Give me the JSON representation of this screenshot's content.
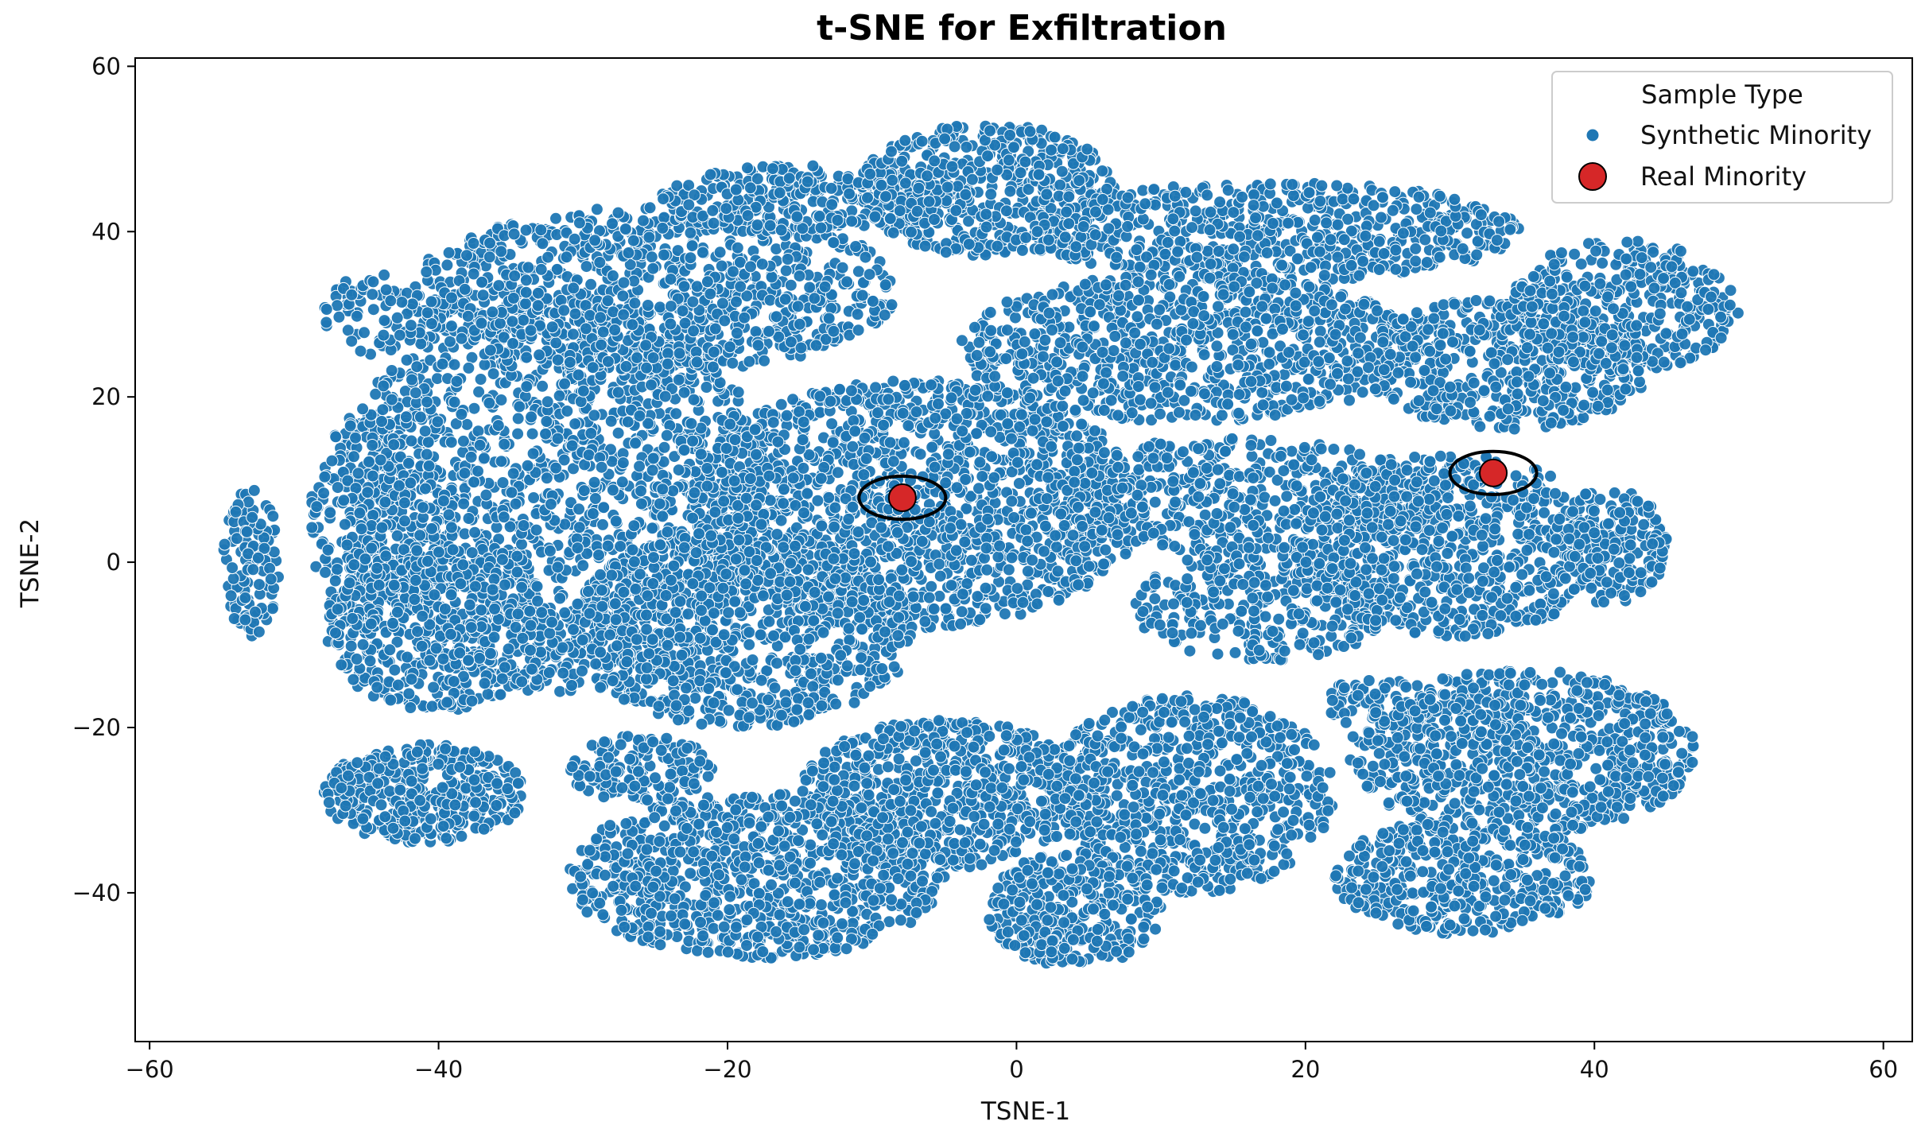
{
  "chart_data": {
    "type": "scatter",
    "title": "t-SNE for Exfiltration",
    "xlabel": "TSNE-1",
    "ylabel": "TSNE-2",
    "xlim": [
      -61,
      62
    ],
    "ylim": [
      -58,
      61
    ],
    "xticks": [
      -60,
      -40,
      -20,
      0,
      20,
      40,
      60
    ],
    "yticks": [
      -40,
      -20,
      0,
      20,
      40,
      60
    ],
    "xtick_labels": [
      "−60",
      "−40",
      "−20",
      "0",
      "20",
      "40",
      "60"
    ],
    "ytick_labels": [
      "−40",
      "−20",
      "0",
      "20",
      "40",
      "60"
    ],
    "grid": false,
    "legend": {
      "title": "Sample Type",
      "placement": "top-right",
      "entries": [
        "Synthetic Minority",
        "Real Minority"
      ]
    },
    "colors": {
      "synthetic": "#1f77b4",
      "real": "#d62728",
      "marker_edge": "#ffffff",
      "highlight_ring": "#000000"
    },
    "series": [
      {
        "name": "Synthetic Minority",
        "marker": "circle-small",
        "clusters": [
          {
            "cx": -7,
            "cy": 7,
            "rx": 16,
            "ry": 15,
            "n": 1500
          },
          {
            "cx": -19,
            "cy": -8,
            "rx": 12,
            "ry": 12,
            "n": 900
          },
          {
            "cx": -32,
            "cy": 8,
            "rx": 15,
            "ry": 24,
            "n": 1600
          },
          {
            "cx": -44,
            "cy": 5,
            "rx": 5,
            "ry": 14,
            "n": 300
          },
          {
            "cx": -40,
            "cy": -8,
            "rx": 8,
            "ry": 10,
            "n": 400
          },
          {
            "cx": -25,
            "cy": 33,
            "rx": 17,
            "ry": 10,
            "n": 900
          },
          {
            "cx": -15,
            "cy": 44,
            "rx": 10,
            "ry": 4,
            "n": 260
          },
          {
            "cx": -2,
            "cy": 45,
            "rx": 9,
            "ry": 8,
            "n": 520
          },
          {
            "cx": 18,
            "cy": 40,
            "rx": 17,
            "ry": 6,
            "n": 620
          },
          {
            "cx": 12,
            "cy": 26,
            "rx": 16,
            "ry": 9,
            "n": 850
          },
          {
            "cx": 15,
            "cy": 8,
            "rx": 14,
            "ry": 7,
            "n": 500
          },
          {
            "cx": 17,
            "cy": -5,
            "rx": 9,
            "ry": 7,
            "n": 330
          },
          {
            "cx": 30,
            "cy": 2,
            "rx": 11,
            "ry": 11,
            "n": 700
          },
          {
            "cx": 34,
            "cy": 24,
            "rx": 10,
            "ry": 8,
            "n": 480
          },
          {
            "cx": 42,
            "cy": 31,
            "rx": 8,
            "ry": 8,
            "n": 380
          },
          {
            "cx": 41,
            "cy": 2,
            "rx": 4,
            "ry": 7,
            "n": 180
          },
          {
            "cx": 35,
            "cy": -23,
            "rx": 12,
            "ry": 10,
            "n": 800
          },
          {
            "cx": 31,
            "cy": -38,
            "rx": 9,
            "ry": 7,
            "n": 420
          },
          {
            "cx": 12,
            "cy": -28,
            "rx": 10,
            "ry": 12,
            "n": 720
          },
          {
            "cx": 4,
            "cy": -42,
            "rx": 6,
            "ry": 7,
            "n": 330
          },
          {
            "cx": -5,
            "cy": -28,
            "rx": 10,
            "ry": 9,
            "n": 650
          },
          {
            "cx": -18,
            "cy": -38,
            "rx": 13,
            "ry": 10,
            "n": 900
          },
          {
            "cx": -26,
            "cy": -25,
            "rx": 5,
            "ry": 4,
            "n": 150
          },
          {
            "cx": -41,
            "cy": -28,
            "rx": 7,
            "ry": 6,
            "n": 370
          },
          {
            "cx": -44,
            "cy": 30,
            "rx": 4,
            "ry": 5,
            "n": 90
          },
          {
            "cx": -53,
            "cy": 0,
            "rx": 2,
            "ry": 9,
            "n": 110
          },
          {
            "cx": 25,
            "cy": -17,
            "rx": 4,
            "ry": 3,
            "n": 70
          }
        ]
      },
      {
        "name": "Real Minority",
        "marker": "circle-large",
        "points": [
          {
            "x": -7.9,
            "y": 7.8
          },
          {
            "x": 33.0,
            "y": 10.8
          }
        ]
      }
    ],
    "annotations": [
      {
        "type": "ellipse",
        "cx": -7.9,
        "cy": 7.8,
        "rx": 3.0,
        "ry": 3.0
      },
      {
        "type": "ellipse",
        "cx": 33.0,
        "cy": 10.8,
        "rx": 3.0,
        "ry": 3.0
      }
    ]
  }
}
